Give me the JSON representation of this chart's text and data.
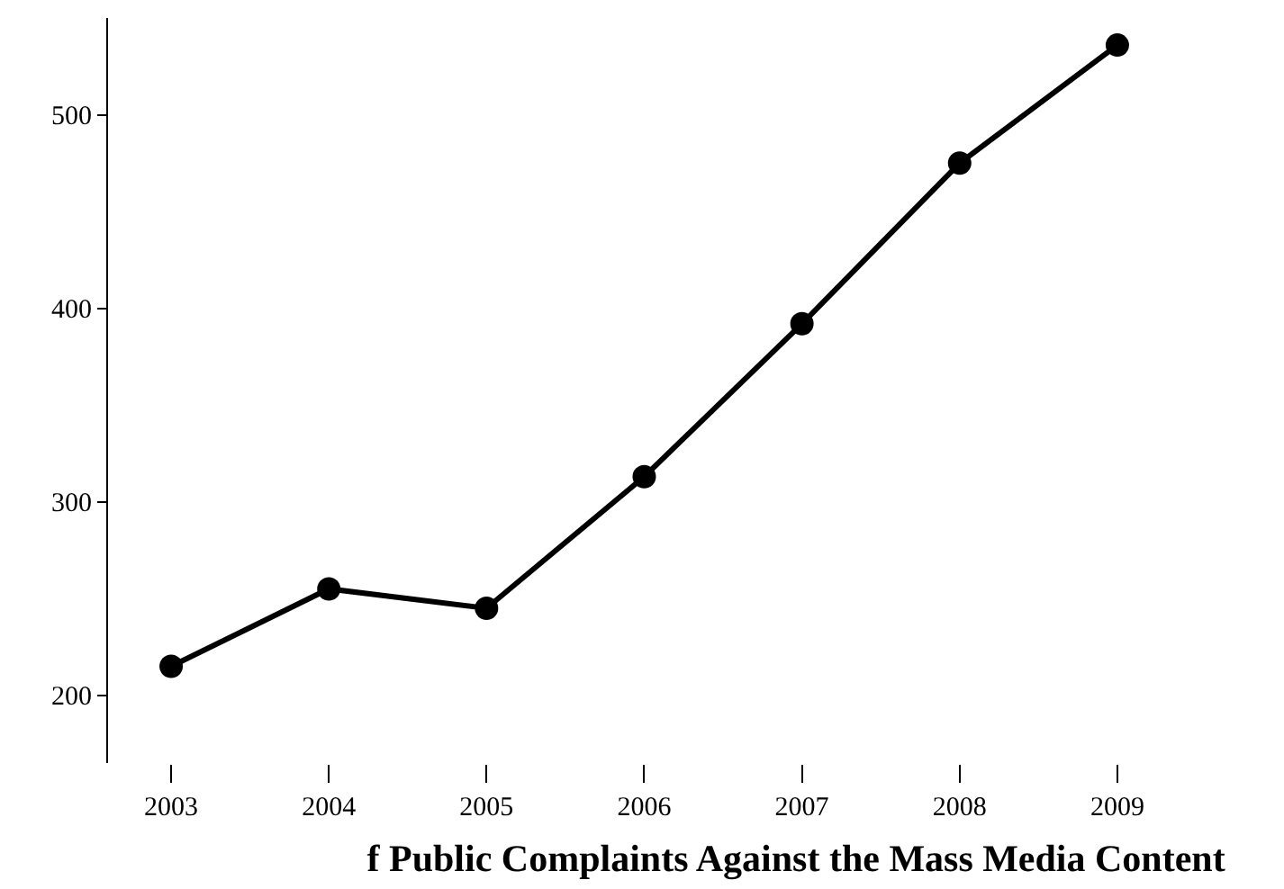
{
  "chart_data": {
    "type": "line",
    "title": "f Public Complaints Against the Mass Media Content",
    "categories": [
      "2003",
      "2004",
      "2005",
      "2006",
      "2007",
      "2008",
      "2009"
    ],
    "series": [
      {
        "color": "#000000",
        "values": [
          215,
          255,
          245,
          313,
          392,
          475,
          536
        ]
      }
    ],
    "ylim": [
      165,
      550
    ],
    "yticks": [
      200,
      300,
      400,
      500
    ],
    "grid": false,
    "legend": false,
    "marker": "circle",
    "line_style": "solid"
  }
}
